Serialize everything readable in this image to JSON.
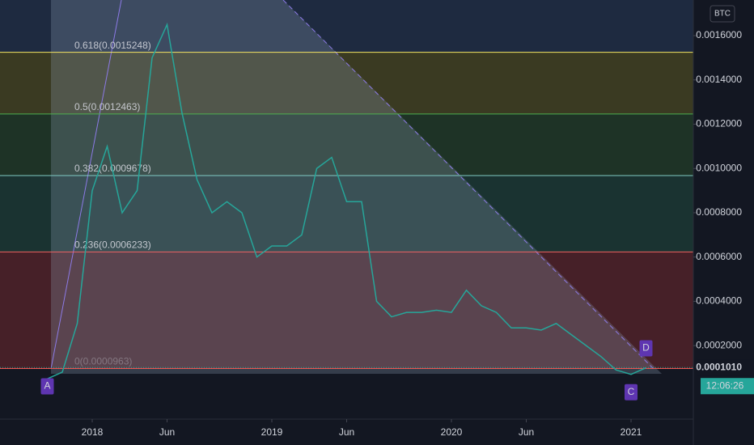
{
  "chart_data": {
    "type": "line",
    "currency": "BTC",
    "x": [
      "2017-10",
      "2017-11",
      "2017-12",
      "2018-01",
      "2018-02",
      "2018-03",
      "2018-04",
      "2018-05",
      "2018-06",
      "2018-07",
      "2018-08",
      "2018-09",
      "2018-10",
      "2018-11",
      "2018-12",
      "2019-01",
      "2019-02",
      "2019-03",
      "2019-04",
      "2019-05",
      "2019-06",
      "2019-07",
      "2019-08",
      "2019-09",
      "2019-10",
      "2019-11",
      "2019-12",
      "2020-01",
      "2020-02",
      "2020-03",
      "2020-04",
      "2020-05",
      "2020-06",
      "2020-07",
      "2020-08",
      "2020-09",
      "2020-10",
      "2020-11",
      "2020-12",
      "2021-01",
      "2021-02"
    ],
    "values": [
      5e-05,
      8e-05,
      0.0003,
      0.0009,
      0.0011,
      0.0008,
      0.0009,
      0.0015,
      0.00165,
      0.00125,
      0.00095,
      0.0008,
      0.00085,
      0.0008,
      0.0006,
      0.00065,
      0.00065,
      0.0007,
      0.001,
      0.00105,
      0.00085,
      0.00085,
      0.0004,
      0.00033,
      0.00035,
      0.00035,
      0.00036,
      0.00035,
      0.00045,
      0.00038,
      0.00035,
      0.00028,
      0.00028,
      0.00027,
      0.0003,
      0.00025,
      0.0002,
      0.00015,
      9e-05,
      7e-05,
      0.0001
    ],
    "color": "#26a69a",
    "ylim": [
      -0.000132,
      0.001761
    ],
    "yticks": [
      {
        "value": 0.0002,
        "label": "0.0002000"
      },
      {
        "value": 0.0004,
        "label": "0.0004000"
      },
      {
        "value": 0.0006,
        "label": "0.0006000"
      },
      {
        "value": 0.0008,
        "label": "0.0008000"
      },
      {
        "value": 0.001,
        "label": "0.0010000"
      },
      {
        "value": 0.0012,
        "label": "0.0012000"
      },
      {
        "value": 0.0014,
        "label": "0.0014000"
      },
      {
        "value": 0.0016,
        "label": "0.0016000"
      }
    ],
    "xticks": [
      {
        "value": "2018-01",
        "label": "2018"
      },
      {
        "value": "2018-06",
        "label": "Jun"
      },
      {
        "value": "2019-01",
        "label": "2019"
      },
      {
        "value": "2019-06",
        "label": "Jun"
      },
      {
        "value": "2020-01",
        "label": "2020"
      },
      {
        "value": "2020-06",
        "label": "Jun"
      },
      {
        "value": "2021-01",
        "label": "2021"
      }
    ],
    "fib_levels": [
      {
        "label": "0.618(0.0015248)",
        "value": 0.0015248,
        "color": "#f5e663",
        "fill": "#3a3a22"
      },
      {
        "label": "0.5(0.0012463)",
        "value": 0.0012463,
        "color": "#4caf50",
        "fill": "#1e3326"
      },
      {
        "label": "0.382(0.0009678)",
        "value": 0.0009678,
        "color": "#80cbc4",
        "fill": "#1a3331"
      },
      {
        "label": "0.236(0.0006233)",
        "value": 0.0006233,
        "color": "#f06262",
        "fill": "#462028"
      },
      {
        "label": "0(0.0000963)",
        "value": 9.63e-05,
        "color": "#ef5350",
        "fill": "#131722"
      }
    ],
    "pattern_points": [
      {
        "label": "A",
        "x": "2017-10",
        "y": 9.63e-05
      },
      {
        "label": "C",
        "x": "2021-01",
        "y": 7e-05
      },
      {
        "label": "D",
        "x": "2021-02",
        "y": 0.0001
      }
    ],
    "current_price": {
      "value": 0.000101,
      "label": "0.0001010"
    },
    "countdown": "12:06:26"
  }
}
